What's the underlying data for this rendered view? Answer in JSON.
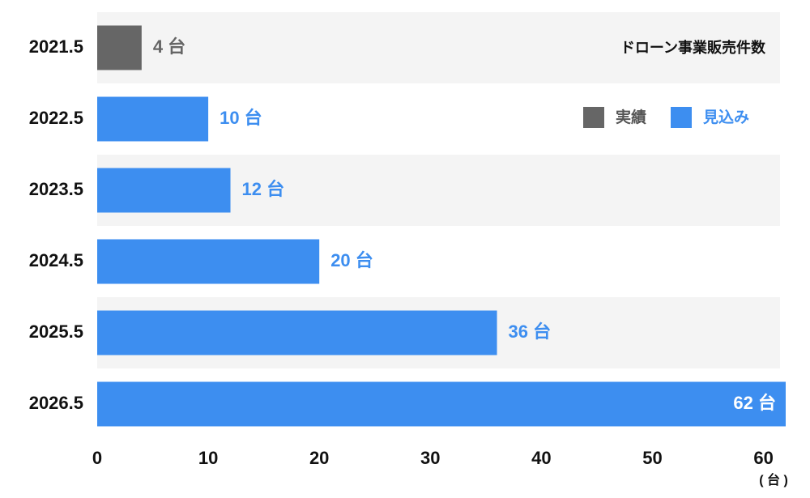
{
  "chart_data": {
    "type": "bar",
    "orientation": "horizontal",
    "title": "ドローン事業販売件数",
    "x_label": "( 台 )",
    "categories": [
      "2021.5",
      "2022.5",
      "2023.5",
      "2024.5",
      "2025.5",
      "2026.5"
    ],
    "series": [
      {
        "name": "実績",
        "color": "#666666",
        "values": [
          4,
          null,
          null,
          null,
          null,
          null
        ],
        "value_labels": [
          "4 台",
          null,
          null,
          null,
          null,
          null
        ]
      },
      {
        "name": "見込み",
        "color": "#3d8ef0",
        "values": [
          null,
          10,
          12,
          20,
          36,
          62
        ],
        "value_labels": [
          null,
          "10 台",
          "12 台",
          "20 台",
          "36 台",
          "62 台"
        ]
      }
    ],
    "xlim": [
      0,
      62
    ],
    "xticks": [
      0,
      10,
      20,
      30,
      40,
      50,
      60
    ],
    "grid": false,
    "legend": "top-right"
  }
}
